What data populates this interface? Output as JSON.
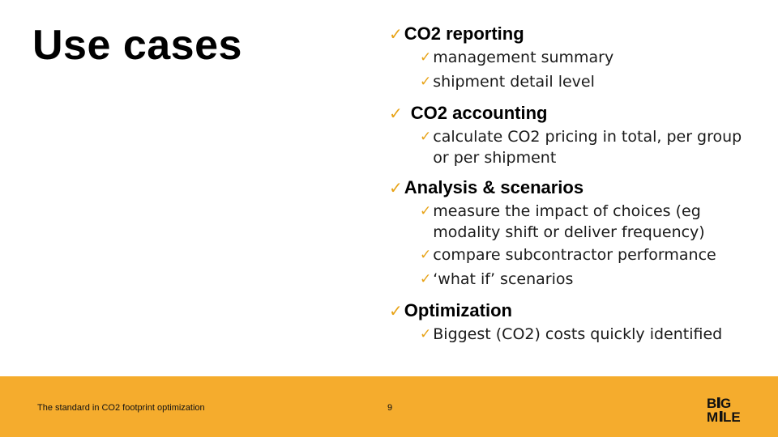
{
  "slide": {
    "title": "Use cases",
    "items": [
      {
        "heading": "CO2 reporting",
        "subs": [
          "management summary",
          "shipment detail level"
        ]
      },
      {
        "heading": "CO2 accounting",
        "subs": [
          "calculate CO2 pricing in total, per group or per shipment"
        ]
      },
      {
        "heading": "Analysis & scenarios",
        "subs": [
          "measure the impact of choices (eg modality shift or deliver frequency)",
          "compare subcontractor performance",
          "‘what if’ scenarios"
        ]
      },
      {
        "heading": "Optimization",
        "subs": [
          "Biggest (CO2) costs quickly identified"
        ]
      }
    ]
  },
  "footer": {
    "tagline": "The standard in CO2 footprint optimization",
    "page_number": "9",
    "logo_text": "BIG MILE"
  },
  "colors": {
    "accent": "#f5ac2d",
    "check": "#e8a317"
  },
  "icons": {
    "bullet": "checkmark-icon",
    "logo": "bigmile-logo"
  }
}
